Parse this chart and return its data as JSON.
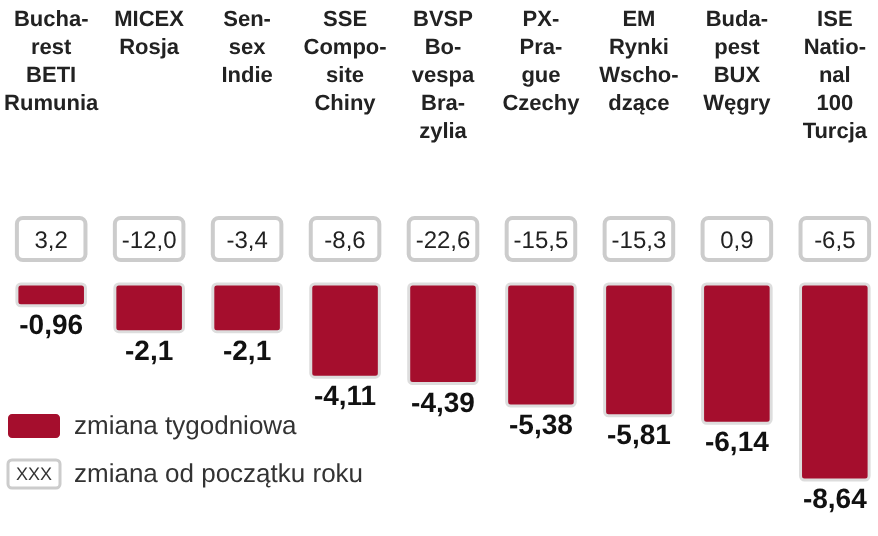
{
  "chart_data": {
    "type": "bar",
    "categories": [
      "Bucha-\nrest\nBETI\nRumunia",
      "MICEX\nRosja",
      "Sen-\nsex\nIndie",
      "SSE\nCompo-\nsite\nChiny",
      "BVSP\nBo-\nvespa\nBra-\nzylia",
      "PX-\nPra-\ngue\nCzechy",
      "EM\nRynki\nWscho-\ndzące",
      "Buda-\npest\nBUX\nWęgry",
      "ISE\nNatio-\nnal\n100\nTurcja"
    ],
    "series": [
      {
        "name": "zmiana tygodniowa",
        "color": "#a50e2d",
        "values": [
          -0.96,
          -2.1,
          -2.1,
          -4.11,
          -4.39,
          -5.38,
          -5.81,
          -6.14,
          -8.64
        ],
        "value_labels": [
          "-0,96",
          "-2,1",
          "-2,1",
          "-4,11",
          "-4,39",
          "-5,38",
          "-5,81",
          "-6,14",
          "-8,64"
        ]
      }
    ],
    "annotations": [
      "3,2",
      "-12,0",
      "-3,4",
      "-8,6",
      "-22,6",
      "-15,5",
      "-15,3",
      "0,9",
      "-6,5",
      "XXX",
      "zmiana od początku roku"
    ],
    "legend": "left"
  }
}
